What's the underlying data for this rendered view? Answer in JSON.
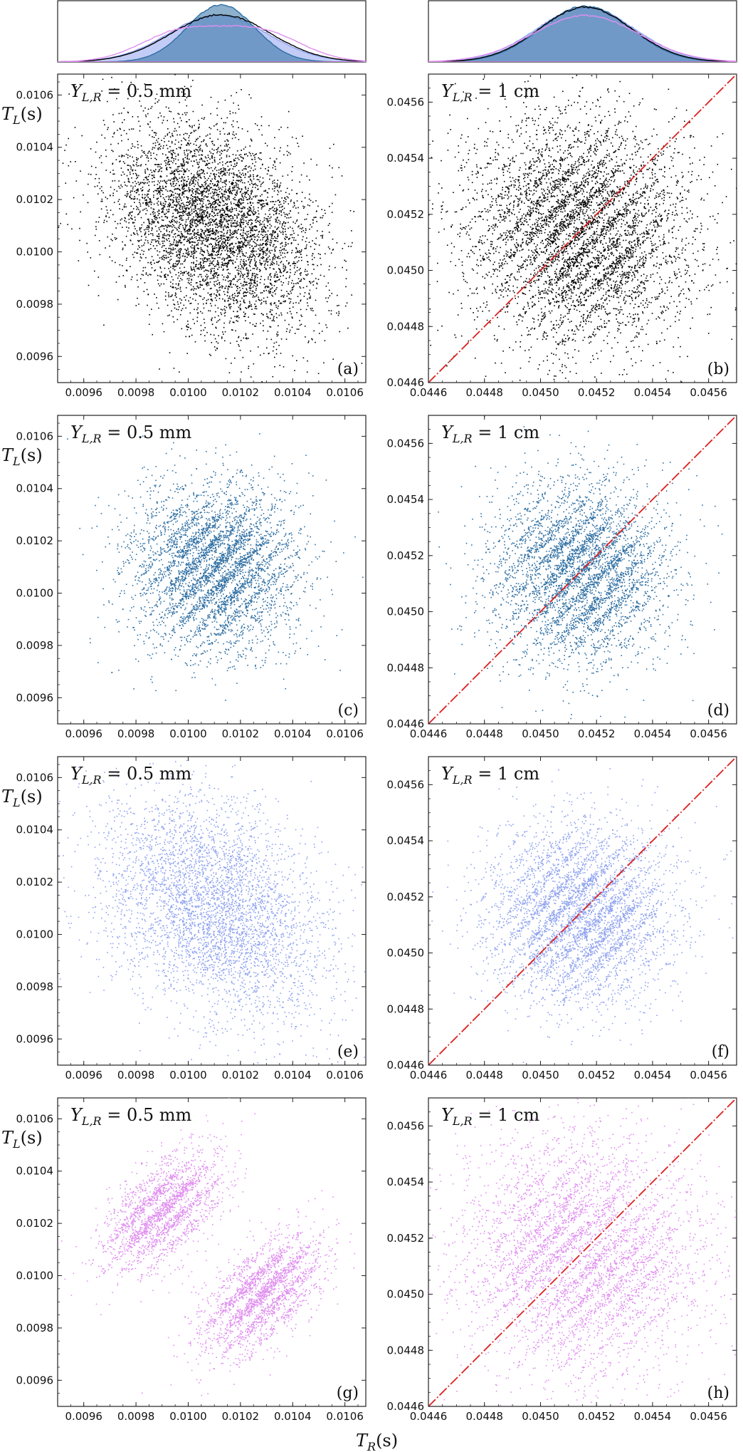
{
  "chart_data": {
    "type": "scatter",
    "title": "",
    "xlabel": "T_R(s)",
    "ylabel": "T_L(s)",
    "colors": {
      "black_series": "#000000",
      "blue_series": "#2f6fa3",
      "light_blue_series": "#8fa2ef",
      "violet_series": "#e08ef0",
      "diagonal_line": "#dd2020"
    },
    "left_column": {
      "annotation": "Y_{L,R} = 0.5 mm",
      "xlim": [
        0.0095,
        0.01068
      ],
      "ylim": [
        0.0095,
        0.01068
      ],
      "xticks": [
        "0.0096",
        "0.0098",
        "0.0100",
        "0.0102",
        "0.0104",
        "0.0106"
      ],
      "yticks": [
        "0.0096",
        "0.0098",
        "0.0100",
        "0.0102",
        "0.0104",
        "0.0106"
      ],
      "tick_values": [
        0.0096,
        0.0098,
        0.01,
        0.0102,
        0.0104,
        0.0106
      ]
    },
    "right_column": {
      "annotation": "Y_{L,R} = 1 cm",
      "xlim": [
        0.0446,
        0.0457
      ],
      "ylim": [
        0.0446,
        0.0457
      ],
      "xticks": [
        "0.0446",
        "0.0448",
        "0.0450",
        "0.0452",
        "0.0454",
        "0.0456"
      ],
      "yticks": [
        "0.0446",
        "0.0448",
        "0.0450",
        "0.0452",
        "0.0454",
        "0.0456"
      ],
      "tick_values": [
        0.0446,
        0.0448,
        0.045,
        0.0452,
        0.0454,
        0.0456
      ],
      "diagonal": "T_L = T_R"
    },
    "panels": [
      {
        "label": "(a)",
        "column": "left",
        "row": 1,
        "color": "#000000",
        "center": [
          0.0101,
          0.0101
        ],
        "spread": 0.0002,
        "pattern": "anti-diagonal fringes"
      },
      {
        "label": "(b)",
        "column": "right",
        "row": 1,
        "color": "#000000",
        "center": [
          0.04514,
          0.04514
        ],
        "spread": 0.0002,
        "pattern": "diagonal fringes"
      },
      {
        "label": "(c)",
        "column": "left",
        "row": 2,
        "color": "#2f6fa3",
        "center": [
          0.0101,
          0.0101
        ],
        "spread": 0.00016,
        "pattern": "diagonal fringes"
      },
      {
        "label": "(d)",
        "column": "right",
        "row": 2,
        "color": "#2f6fa3",
        "center": [
          0.04514,
          0.04514
        ],
        "spread": 0.00016,
        "pattern": "diagonal fringes"
      },
      {
        "label": "(e)",
        "column": "left",
        "row": 3,
        "color": "#8fa2ef",
        "center": [
          0.0101,
          0.0101
        ],
        "spread": 0.00021,
        "pattern": "anti-diagonal, smooth"
      },
      {
        "label": "(f)",
        "column": "right",
        "row": 3,
        "color": "#8fa2ef",
        "center": [
          0.04514,
          0.04514
        ],
        "spread": 0.00016,
        "pattern": "diagonal fringes"
      },
      {
        "label": "(g)",
        "column": "left",
        "row": 4,
        "color": "#e08ef0",
        "centers": [
          [
            0.0099,
            0.01025
          ],
          [
            0.01028,
            0.00993
          ]
        ],
        "spread": 0.00016,
        "pattern": "two lobes, diagonal fringes"
      },
      {
        "label": "(h)",
        "column": "right",
        "row": 4,
        "color": "#e08ef0",
        "center": [
          0.04514,
          0.04514
        ],
        "spread": 0.00021,
        "pattern": "diagonal fringes, gap along T_L = T_R"
      }
    ],
    "marginal_histograms": [
      {
        "column": "left",
        "series": [
          "black",
          "blue",
          "light_blue",
          "violet"
        ],
        "note": "blue narrow peak, violet bimodal broad"
      },
      {
        "column": "right",
        "series": [
          "black",
          "blue",
          "light_blue",
          "violet"
        ],
        "note": "all near-Gaussian, violet slightly lower/broader"
      }
    ]
  }
}
